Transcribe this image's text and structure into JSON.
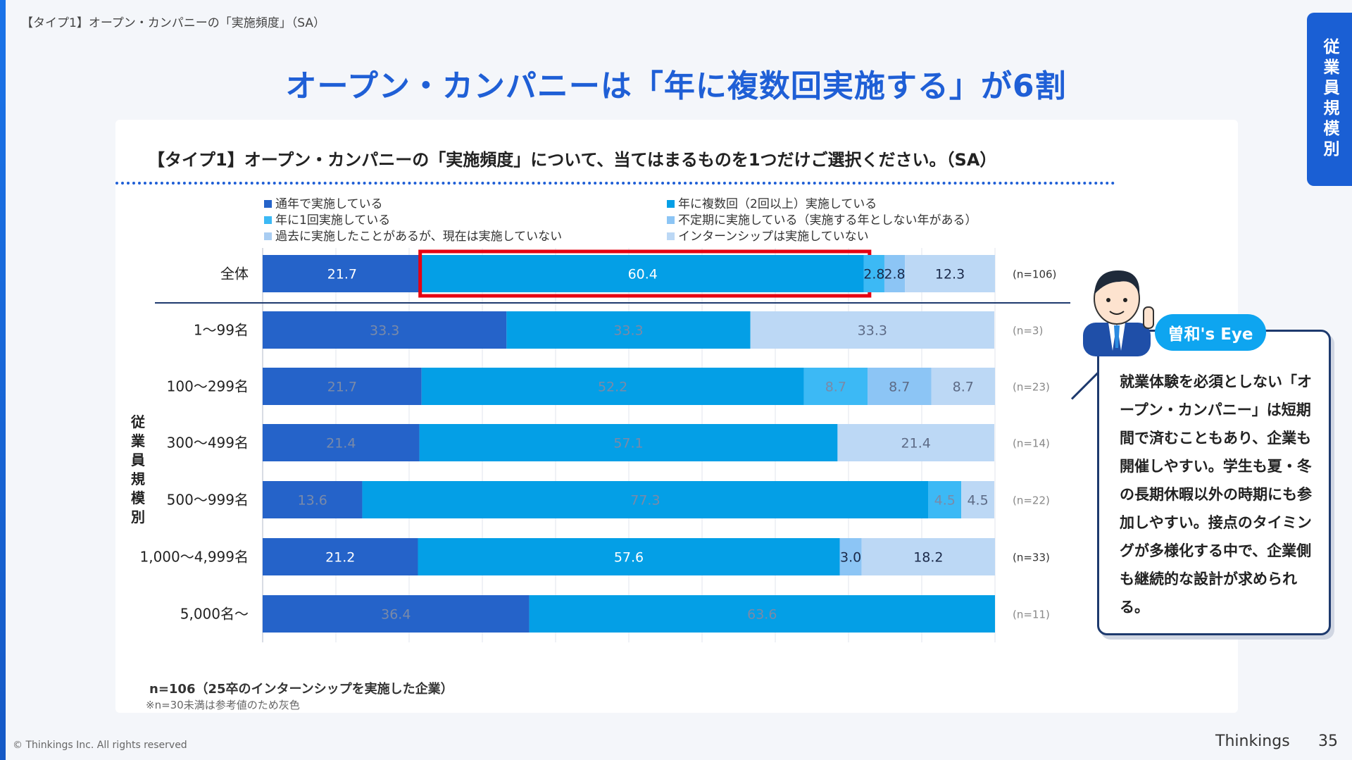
{
  "header": {
    "breadcrumb": "【タイプ1】オープン・カンパニーの「実施頻度」（SA）",
    "title": "オープン・カンパニーは「年に複数回実施する」が6割",
    "side_tab": "従業員規模別"
  },
  "question": "【タイプ1】オープン・カンパニーの「実施頻度」について、当てはまるものを1つだけご選択ください。（SA）",
  "footer": {
    "note1": "n=106（25卒のインターンシップを実施した企業）",
    "note2": "※n=30未満は参考値のため灰色",
    "copyright": "© Thinkings Inc. All rights reserved",
    "brand": "Thinkings",
    "page": "35"
  },
  "eye": {
    "label": "曽和's Eye",
    "text": "就業体験を必須としない「オープン・カンパニー」は短期間で済むこともあり、企業も開催しやすい。学生も夏・冬の長期休暇以外の時期にも参加しやすい。接点のタイミングが多様化する中で、企業側も継続的な設計が求められる。"
  },
  "colors": {
    "accent": "#1f5fd6",
    "highlight": "#e60012",
    "grey_label": "#7a8aa8"
  },
  "chart_data": {
    "type": "bar",
    "orientation": "horizontal",
    "stacked": true,
    "xlim": [
      0,
      100
    ],
    "group_label": "従業員規模別",
    "legend": [
      {
        "name": "通年で実施している",
        "color": "#2563c9"
      },
      {
        "name": "年に複数回（2回以上）実施している",
        "color": "#049fe6"
      },
      {
        "name": "年に1回実施している",
        "color": "#3cb9f5"
      },
      {
        "name": "不定期に実施している（実施する年としない年がある）",
        "color": "#8cc5f5"
      },
      {
        "name": "過去に実施したことがあるが、現在は実施していない",
        "color": "#a9cdf2"
      },
      {
        "name": "インターンシップは実施していない",
        "color": "#bcd8f5"
      }
    ],
    "rows": [
      {
        "category": "全体",
        "n": "(n=106)",
        "reference": false,
        "highlight_series": 1,
        "values": [
          21.7,
          60.4,
          2.8,
          2.8,
          0,
          12.3
        ],
        "labels": [
          "21.7",
          "60.4",
          "2.8",
          "2.8",
          "",
          "12.3"
        ]
      },
      {
        "category": "1〜99名",
        "n": "(n=3)",
        "reference": true,
        "values": [
          33.3,
          33.3,
          0,
          0,
          0,
          33.3
        ],
        "labels": [
          "33.3",
          "33.3",
          "",
          "",
          "",
          "33.3"
        ]
      },
      {
        "category": "100〜299名",
        "n": "(n=23)",
        "reference": true,
        "values": [
          21.7,
          52.2,
          8.7,
          8.7,
          0,
          8.7
        ],
        "labels": [
          "21.7",
          "52.2",
          "8.7",
          "8.7",
          "",
          "8.7"
        ]
      },
      {
        "category": "300〜499名",
        "n": "(n=14)",
        "reference": true,
        "values": [
          21.4,
          57.1,
          0,
          0,
          0,
          21.4
        ],
        "labels": [
          "21.4",
          "57.1",
          "",
          "",
          "",
          "21.4"
        ]
      },
      {
        "category": "500〜999名",
        "n": "(n=22)",
        "reference": true,
        "values": [
          13.6,
          77.3,
          4.5,
          0,
          0,
          4.5
        ],
        "labels": [
          "13.6",
          "77.3",
          "4.5",
          "",
          "",
          "4.5"
        ]
      },
      {
        "category": "1,000〜4,999名",
        "n": "(n=33)",
        "reference": false,
        "values": [
          21.2,
          57.6,
          0,
          3.0,
          0,
          18.2
        ],
        "labels": [
          "21.2",
          "57.6",
          "",
          "3.0",
          "",
          "18.2"
        ]
      },
      {
        "category": "5,000名〜",
        "n": "(n=11)",
        "reference": true,
        "values": [
          36.4,
          63.6,
          0,
          0,
          0,
          0
        ],
        "labels": [
          "36.4",
          "63.6",
          "",
          "",
          "",
          ""
        ]
      }
    ]
  }
}
